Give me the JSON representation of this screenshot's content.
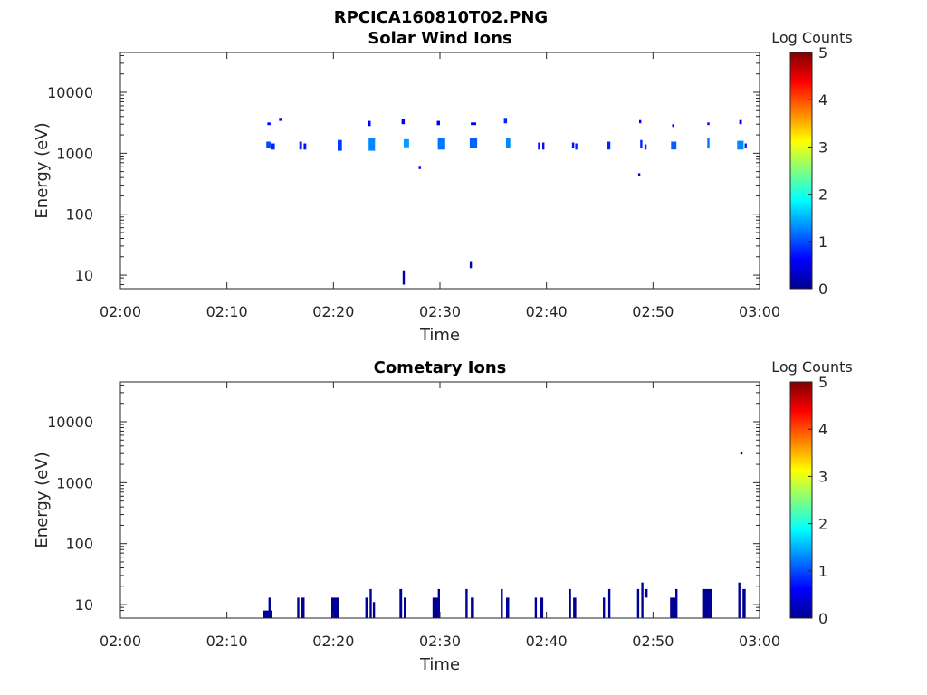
{
  "figure": {
    "title": "RPCICA160810T02.PNG"
  },
  "chart_data": [
    {
      "type": "heatmap",
      "title": "Solar Wind Ions",
      "xlabel": "Time",
      "ylabel": "Energy (eV)",
      "x_ticks": [
        "02:00",
        "02:10",
        "02:20",
        "02:30",
        "02:40",
        "02:50",
        "03:00"
      ],
      "x_range_min": [
        0,
        60
      ],
      "y_ticks": [
        "10",
        "100",
        "1000",
        "10000"
      ],
      "y_tick_values": [
        10,
        100,
        1000,
        10000
      ],
      "y_scale": "log",
      "ylim": [
        6,
        45000
      ],
      "colorbar": {
        "label": "Log Counts",
        "ticks": [
          "0",
          "1",
          "2",
          "3",
          "4",
          "5"
        ],
        "range": [
          0,
          5
        ],
        "colormap": "jet"
      },
      "cells": [
        {
          "t": 13.8,
          "dt": 0.3,
          "e1": 2900,
          "e2": 3200,
          "c": 0.6
        },
        {
          "t": 14.9,
          "dt": 0.3,
          "e1": 3400,
          "e2": 3800,
          "c": 0.6
        },
        {
          "t": 13.7,
          "dt": 0.4,
          "e1": 1200,
          "e2": 1550,
          "c": 1.0
        },
        {
          "t": 14.1,
          "dt": 0.4,
          "e1": 1150,
          "e2": 1450,
          "c": 0.8
        },
        {
          "t": 16.8,
          "dt": 0.25,
          "e1": 1150,
          "e2": 1550,
          "c": 0.8
        },
        {
          "t": 17.2,
          "dt": 0.25,
          "e1": 1150,
          "e2": 1450,
          "c": 0.7
        },
        {
          "t": 20.4,
          "dt": 0.4,
          "e1": 1100,
          "e2": 1650,
          "c": 0.9
        },
        {
          "t": 23.2,
          "dt": 0.3,
          "e1": 2800,
          "e2": 3400,
          "c": 0.6
        },
        {
          "t": 23.3,
          "dt": 0.6,
          "e1": 1100,
          "e2": 1750,
          "c": 1.3
        },
        {
          "t": 26.4,
          "dt": 0.3,
          "e1": 3000,
          "e2": 3700,
          "c": 0.6
        },
        {
          "t": 26.6,
          "dt": 0.5,
          "e1": 1250,
          "e2": 1700,
          "c": 1.4
        },
        {
          "t": 28.0,
          "dt": 0.2,
          "e1": 550,
          "e2": 620,
          "c": 0.5
        },
        {
          "t": 29.7,
          "dt": 0.3,
          "e1": 2900,
          "e2": 3400,
          "c": 0.6
        },
        {
          "t": 29.8,
          "dt": 0.7,
          "e1": 1150,
          "e2": 1750,
          "c": 1.2
        },
        {
          "t": 32.9,
          "dt": 0.5,
          "e1": 2900,
          "e2": 3200,
          "c": 0.6
        },
        {
          "t": 32.8,
          "dt": 0.7,
          "e1": 1200,
          "e2": 1750,
          "c": 1.1
        },
        {
          "t": 36.0,
          "dt": 0.3,
          "e1": 3100,
          "e2": 3800,
          "c": 0.8
        },
        {
          "t": 36.2,
          "dt": 0.4,
          "e1": 1200,
          "e2": 1750,
          "c": 1.3
        },
        {
          "t": 39.2,
          "dt": 0.2,
          "e1": 1150,
          "e2": 1500,
          "c": 0.7
        },
        {
          "t": 39.6,
          "dt": 0.2,
          "e1": 1150,
          "e2": 1500,
          "c": 0.7
        },
        {
          "t": 42.4,
          "dt": 0.2,
          "e1": 1200,
          "e2": 1500,
          "c": 0.7
        },
        {
          "t": 42.7,
          "dt": 0.2,
          "e1": 1150,
          "e2": 1450,
          "c": 0.8
        },
        {
          "t": 45.7,
          "dt": 0.3,
          "e1": 1150,
          "e2": 1550,
          "c": 0.8
        },
        {
          "t": 48.7,
          "dt": 0.2,
          "e1": 3100,
          "e2": 3500,
          "c": 0.6
        },
        {
          "t": 48.6,
          "dt": 0.2,
          "e1": 420,
          "e2": 470,
          "c": 0.5
        },
        {
          "t": 48.8,
          "dt": 0.2,
          "e1": 1200,
          "e2": 1650,
          "c": 0.8
        },
        {
          "t": 49.2,
          "dt": 0.2,
          "e1": 1150,
          "e2": 1400,
          "c": 0.8
        },
        {
          "t": 51.8,
          "dt": 0.2,
          "e1": 2700,
          "e2": 3000,
          "c": 0.6
        },
        {
          "t": 51.7,
          "dt": 0.5,
          "e1": 1150,
          "e2": 1550,
          "c": 1.1
        },
        {
          "t": 55.1,
          "dt": 0.2,
          "e1": 2900,
          "e2": 3200,
          "c": 0.6
        },
        {
          "t": 55.1,
          "dt": 0.2,
          "e1": 1200,
          "e2": 1800,
          "c": 1.2
        },
        {
          "t": 58.1,
          "dt": 0.25,
          "e1": 3000,
          "e2": 3500,
          "c": 0.6
        },
        {
          "t": 57.9,
          "dt": 0.6,
          "e1": 1150,
          "e2": 1600,
          "c": 1.3
        },
        {
          "t": 58.6,
          "dt": 0.2,
          "e1": 1200,
          "e2": 1450,
          "c": 0.8
        },
        {
          "t": 26.5,
          "dt": 0.2,
          "e1": 7,
          "e2": 12,
          "c": 0.2
        },
        {
          "t": 32.8,
          "dt": 0.2,
          "e1": 13,
          "e2": 17,
          "c": 0.3
        }
      ]
    },
    {
      "type": "heatmap",
      "title": "Cometary Ions",
      "xlabel": "Time",
      "ylabel": "Energy (eV)",
      "x_ticks": [
        "02:00",
        "02:10",
        "02:20",
        "02:30",
        "02:40",
        "02:50",
        "03:00"
      ],
      "x_range_min": [
        0,
        60
      ],
      "y_ticks": [
        "10",
        "100",
        "1000",
        "10000"
      ],
      "y_tick_values": [
        10,
        100,
        1000,
        10000
      ],
      "y_scale": "log",
      "ylim": [
        6,
        45000
      ],
      "colorbar": {
        "label": "Log Counts",
        "ticks": [
          "0",
          "1",
          "2",
          "3",
          "4",
          "5"
        ],
        "range": [
          0,
          5
        ],
        "colormap": "jet"
      },
      "cells": [
        {
          "t": 58.2,
          "dt": 0.2,
          "e1": 2900,
          "e2": 3200,
          "c": 0.2
        },
        {
          "t": 13.4,
          "dt": 0.8,
          "e1": 6,
          "e2": 8,
          "c": 0.1
        },
        {
          "t": 13.9,
          "dt": 0.2,
          "e1": 6,
          "e2": 13,
          "c": 0.1
        },
        {
          "t": 16.6,
          "dt": 0.2,
          "e1": 6,
          "e2": 13,
          "c": 0.1
        },
        {
          "t": 17.0,
          "dt": 0.3,
          "e1": 6,
          "e2": 13,
          "c": 0.1
        },
        {
          "t": 19.8,
          "dt": 0.7,
          "e1": 6,
          "e2": 13,
          "c": 0.1
        },
        {
          "t": 23.0,
          "dt": 0.25,
          "e1": 6,
          "e2": 13,
          "c": 0.1
        },
        {
          "t": 23.4,
          "dt": 0.2,
          "e1": 6,
          "e2": 18,
          "c": 0.1
        },
        {
          "t": 23.7,
          "dt": 0.2,
          "e1": 6,
          "e2": 11,
          "c": 0.1
        },
        {
          "t": 26.2,
          "dt": 0.25,
          "e1": 6,
          "e2": 18,
          "c": 0.1
        },
        {
          "t": 26.6,
          "dt": 0.2,
          "e1": 6,
          "e2": 13,
          "c": 0.1
        },
        {
          "t": 29.3,
          "dt": 0.7,
          "e1": 6,
          "e2": 13,
          "c": 0.1
        },
        {
          "t": 29.8,
          "dt": 0.2,
          "e1": 13,
          "e2": 18,
          "c": 0.1
        },
        {
          "t": 32.4,
          "dt": 0.2,
          "e1": 6,
          "e2": 18,
          "c": 0.1
        },
        {
          "t": 32.9,
          "dt": 0.3,
          "e1": 6,
          "e2": 13,
          "c": 0.1
        },
        {
          "t": 35.7,
          "dt": 0.2,
          "e1": 6,
          "e2": 18,
          "c": 0.1
        },
        {
          "t": 36.2,
          "dt": 0.3,
          "e1": 6,
          "e2": 13,
          "c": 0.1
        },
        {
          "t": 38.9,
          "dt": 0.2,
          "e1": 6,
          "e2": 13,
          "c": 0.1
        },
        {
          "t": 39.4,
          "dt": 0.3,
          "e1": 6,
          "e2": 13,
          "c": 0.1
        },
        {
          "t": 42.1,
          "dt": 0.2,
          "e1": 6,
          "e2": 18,
          "c": 0.1
        },
        {
          "t": 42.5,
          "dt": 0.3,
          "e1": 6,
          "e2": 13,
          "c": 0.1
        },
        {
          "t": 45.3,
          "dt": 0.2,
          "e1": 6,
          "e2": 13,
          "c": 0.1
        },
        {
          "t": 45.8,
          "dt": 0.2,
          "e1": 6,
          "e2": 18,
          "c": 0.1
        },
        {
          "t": 48.5,
          "dt": 0.2,
          "e1": 6,
          "e2": 18,
          "c": 0.1
        },
        {
          "t": 48.9,
          "dt": 0.2,
          "e1": 6,
          "e2": 23,
          "c": 0.1
        },
        {
          "t": 49.2,
          "dt": 0.3,
          "e1": 13,
          "e2": 18,
          "c": 0.1
        },
        {
          "t": 51.6,
          "dt": 0.7,
          "e1": 6,
          "e2": 13,
          "c": 0.1
        },
        {
          "t": 52.1,
          "dt": 0.2,
          "e1": 13,
          "e2": 18,
          "c": 0.1
        },
        {
          "t": 54.7,
          "dt": 0.8,
          "e1": 6,
          "e2": 18,
          "c": 0.1
        },
        {
          "t": 55.3,
          "dt": 0.2,
          "e1": 6,
          "e2": 8,
          "c": 0.1
        },
        {
          "t": 58.0,
          "dt": 0.2,
          "e1": 6,
          "e2": 23,
          "c": 0.1
        },
        {
          "t": 58.4,
          "dt": 0.3,
          "e1": 6,
          "e2": 18,
          "c": 0.1
        }
      ]
    }
  ]
}
